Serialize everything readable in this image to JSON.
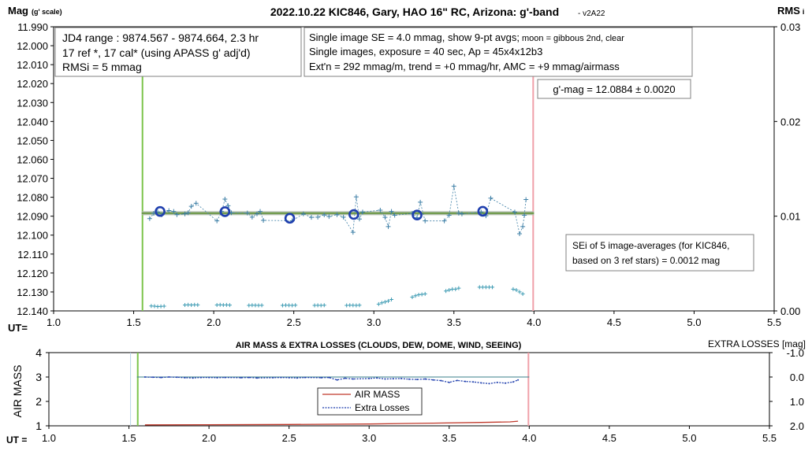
{
  "chart_data": [
    {
      "type": "scatter",
      "title": "2022.10.22 KIC846, Gary, HAO 16\" RC, Arizona: g'-band",
      "title_suffix": "- v2A22",
      "ylabel": "Mag",
      "ylabel_suffix": "(g' scale)",
      "y2label": "RMS",
      "y2label_suffix": "i",
      "xlabel": "UT=",
      "xlim": [
        1.0,
        5.5
      ],
      "ylim": [
        11.99,
        12.14
      ],
      "y_inverted": true,
      "y2lim": [
        0.0,
        0.03
      ],
      "x_ticks": [
        "1.0",
        "1.5",
        "2.0",
        "2.5",
        "3.0",
        "3.5",
        "4.0",
        "4.5",
        "5.0",
        "5.5"
      ],
      "y_ticks": [
        "11.990",
        "12.000",
        "12.010",
        "12.020",
        "12.030",
        "12.040",
        "12.050",
        "12.060",
        "12.070",
        "12.080",
        "12.090",
        "12.100",
        "12.110",
        "12.120",
        "12.130",
        "12.140"
      ],
      "y2_ticks": [
        "0.03",
        "0.02",
        "0.01",
        "0.00"
      ],
      "grid": false,
      "colors": {
        "single": "#3d7fa6",
        "average": "#1f3fae",
        "trend": "#5a8f2a",
        "trend_band": "#a9b8a4",
        "rms": "#3d9bb3",
        "start": "#7cc44c",
        "end": "#f0a0a8"
      },
      "start_line_x": 1.555,
      "end_line_x": 3.995,
      "single_images": [
        [
          1.6,
          12.0913
        ],
        [
          1.625,
          12.0885
        ],
        [
          1.65,
          12.0878
        ],
        [
          1.675,
          12.0893
        ],
        [
          1.72,
          12.087
        ],
        [
          1.75,
          12.0875
        ],
        [
          1.77,
          12.0892
        ],
        [
          1.82,
          12.0888
        ],
        [
          1.84,
          12.0882
        ],
        [
          1.86,
          12.0848
        ],
        [
          1.89,
          12.0832
        ],
        [
          2.02,
          12.0925
        ],
        [
          2.05,
          12.0875
        ],
        [
          2.07,
          12.081
        ],
        [
          2.09,
          12.0845
        ],
        [
          2.11,
          12.0882
        ],
        [
          2.21,
          12.0883
        ],
        [
          2.24,
          12.0905
        ],
        [
          2.27,
          12.0888
        ],
        [
          2.29,
          12.0875
        ],
        [
          2.31,
          12.0922
        ],
        [
          2.49,
          12.0924
        ],
        [
          2.56,
          12.0888
        ],
        [
          2.61,
          12.0906
        ],
        [
          2.65,
          12.0905
        ],
        [
          2.69,
          12.0893
        ],
        [
          2.72,
          12.0902
        ],
        [
          2.77,
          12.0892
        ],
        [
          2.81,
          12.0905
        ],
        [
          2.87,
          12.0985
        ],
        [
          2.89,
          12.0798
        ],
        [
          2.91,
          12.0915
        ],
        [
          2.93,
          12.0878
        ],
        [
          3.04,
          12.0868
        ],
        [
          3.07,
          12.0906
        ],
        [
          3.09,
          12.0955
        ],
        [
          3.11,
          12.0875
        ],
        [
          3.13,
          12.0895
        ],
        [
          3.24,
          12.0885
        ],
        [
          3.27,
          12.0908
        ],
        [
          3.29,
          12.0826
        ],
        [
          3.32,
          12.0925
        ],
        [
          3.44,
          12.0925
        ],
        [
          3.47,
          12.0895
        ],
        [
          3.5,
          12.0742
        ],
        [
          3.53,
          12.0884
        ],
        [
          3.55,
          12.0888
        ],
        [
          3.67,
          12.0878
        ],
        [
          3.7,
          12.0898
        ],
        [
          3.73,
          12.0805
        ],
        [
          3.88,
          12.0878
        ],
        [
          3.91,
          12.0993
        ],
        [
          3.93,
          12.0955
        ],
        [
          3.94,
          12.0895
        ],
        [
          3.95,
          12.0812
        ]
      ],
      "averages": [
        [
          1.665,
          12.0875
        ],
        [
          2.07,
          12.0876
        ],
        [
          2.475,
          12.0911
        ],
        [
          2.875,
          12.0891
        ],
        [
          3.27,
          12.0894
        ],
        [
          3.68,
          12.0874
        ]
      ],
      "trend": {
        "x": [
          1.55,
          4.0
        ],
        "y": [
          12.0884,
          12.0884
        ]
      },
      "rms_points": [
        [
          1.61,
          0.00052
        ],
        [
          1.63,
          0.0005
        ],
        [
          1.65,
          0.00046
        ],
        [
          1.67,
          0.00048
        ],
        [
          1.69,
          0.0005
        ],
        [
          1.82,
          0.00062
        ],
        [
          1.84,
          0.00064
        ],
        [
          1.86,
          0.00062
        ],
        [
          1.88,
          0.00064
        ],
        [
          1.9,
          0.00063
        ],
        [
          2.02,
          0.00062
        ],
        [
          2.04,
          0.00064
        ],
        [
          2.06,
          0.00062
        ],
        [
          2.08,
          0.00063
        ],
        [
          2.1,
          0.00061
        ],
        [
          2.22,
          0.00058
        ],
        [
          2.24,
          0.0006
        ],
        [
          2.26,
          0.00059
        ],
        [
          2.28,
          0.00058
        ],
        [
          2.3,
          0.00059
        ],
        [
          2.43,
          0.00058
        ],
        [
          2.45,
          0.0006
        ],
        [
          2.47,
          0.00059
        ],
        [
          2.49,
          0.00058
        ],
        [
          2.51,
          0.0006
        ],
        [
          2.63,
          0.00058
        ],
        [
          2.65,
          0.00059
        ],
        [
          2.67,
          0.00058
        ],
        [
          2.69,
          0.0006
        ],
        [
          2.83,
          0.00058
        ],
        [
          2.85,
          0.0006
        ],
        [
          2.87,
          0.00059
        ],
        [
          2.89,
          0.00058
        ],
        [
          2.91,
          0.0006
        ],
        [
          3.03,
          0.00072
        ],
        [
          3.05,
          0.00085
        ],
        [
          3.07,
          0.00095
        ],
        [
          3.09,
          0.00105
        ],
        [
          3.11,
          0.0012
        ],
        [
          3.24,
          0.00145
        ],
        [
          3.26,
          0.0016
        ],
        [
          3.28,
          0.0017
        ],
        [
          3.3,
          0.00175
        ],
        [
          3.32,
          0.0018
        ],
        [
          3.45,
          0.0021
        ],
        [
          3.47,
          0.0022
        ],
        [
          3.49,
          0.0023
        ],
        [
          3.51,
          0.0023
        ],
        [
          3.53,
          0.0024
        ],
        [
          3.66,
          0.0025
        ],
        [
          3.68,
          0.0025
        ],
        [
          3.7,
          0.0025
        ],
        [
          3.72,
          0.0025
        ],
        [
          3.74,
          0.0025
        ],
        [
          3.87,
          0.0023
        ],
        [
          3.89,
          0.0022
        ],
        [
          3.91,
          0.002
        ],
        [
          3.93,
          0.0018
        ]
      ],
      "annotations": {
        "jd_box": [
          "JD4 range : 9874.567 - 9874.664,  2.3 hr",
          "17 ref *, 17 cal* (using APASS g' adj'd)",
          "RMSi = 5 mmag"
        ],
        "se_box": [
          "Single image SE = 4.0 mmag, show  9-pt avgs;",
          "moon = gibbous 2nd, clear",
          "Single images, exposure = 40 sec, Ap = 45x4x12b3",
          "Ext'n = 292 mmag/m, trend = +0 mmag/hr, AMC = +9 mmag/airmass"
        ],
        "gmag_box": "g'-mag = 12.0884 ± 0.0020",
        "sei_box": [
          "SEi of 5 image-averages (for KIC846,",
          "based on 3 ref stars) = 0.0012 mag"
        ]
      }
    },
    {
      "type": "line",
      "title": "AIR MASS & EXTRA LOSSES (CLOUDS, DEW, DOME, WIND, SEEING)",
      "ylabel": "AIR MASS",
      "y2label": "EXTRA LOSSES [mag]",
      "xlabel": "UT =",
      "xlim": [
        1.0,
        5.5
      ],
      "ylim": [
        1,
        4
      ],
      "y2lim": [
        -1.0,
        2.0
      ],
      "y2_inverted": true,
      "x_ticks": [
        "1.0",
        "1.5",
        "2.0",
        "2.5",
        "3.0",
        "3.5",
        "4.0",
        "4.5",
        "5.0",
        "5.5"
      ],
      "y_ticks": [
        "4",
        "3",
        "2",
        "1"
      ],
      "y2_ticks": [
        "-1.0",
        "0.0",
        "1.0",
        "2.0"
      ],
      "grid": false,
      "legend_position": "bottom-center",
      "colors": {
        "airmass": "#c0392b",
        "extra": "#1f3fae",
        "ref_line": "#3a7f88",
        "start": "#7cc44c",
        "end": "#f0a0a8",
        "faint": "#b8d4e8"
      },
      "start_line_x": 1.555,
      "end_line_x": 3.995,
      "faint_line_x": 1.51,
      "zero_line": {
        "x": [
          1.55,
          4.0
        ],
        "y2": 0.0
      },
      "series": [
        {
          "name": "AIR MASS",
          "axis": "left",
          "points": [
            [
              1.6,
              1.04
            ],
            [
              2.0,
              1.045
            ],
            [
              2.5,
              1.055
            ],
            [
              3.0,
              1.075
            ],
            [
              3.4,
              1.11
            ],
            [
              3.7,
              1.14
            ],
            [
              3.88,
              1.16
            ],
            [
              3.93,
              1.19
            ]
          ]
        },
        {
          "name": "Extra Losses",
          "axis": "right",
          "points": [
            [
              1.6,
              0.0
            ],
            [
              1.65,
              0.01
            ],
            [
              1.7,
              0.02
            ],
            [
              1.75,
              0.0
            ],
            [
              1.8,
              0.01
            ],
            [
              1.85,
              0.03
            ],
            [
              1.9,
              0.04
            ],
            [
              1.95,
              0.02
            ],
            [
              2.0,
              0.02
            ],
            [
              2.05,
              0.03
            ],
            [
              2.1,
              0.02
            ],
            [
              2.2,
              0.03
            ],
            [
              2.25,
              0.02
            ],
            [
              2.3,
              0.04
            ],
            [
              2.4,
              0.03
            ],
            [
              2.45,
              0.02
            ],
            [
              2.5,
              0.03
            ],
            [
              2.55,
              0.04
            ],
            [
              2.6,
              0.02
            ],
            [
              2.7,
              0.03
            ],
            [
              2.75,
              0.02
            ],
            [
              2.8,
              0.12
            ],
            [
              2.85,
              0.05
            ],
            [
              2.9,
              0.08
            ],
            [
              3.0,
              0.06
            ],
            [
              3.05,
              0.04
            ],
            [
              3.1,
              0.08
            ],
            [
              3.15,
              0.07
            ],
            [
              3.2,
              0.06
            ],
            [
              3.25,
              0.09
            ],
            [
              3.3,
              0.1
            ],
            [
              3.35,
              0.08
            ],
            [
              3.4,
              0.12
            ],
            [
              3.45,
              0.15
            ],
            [
              3.5,
              0.22
            ],
            [
              3.55,
              0.14
            ],
            [
              3.6,
              0.18
            ],
            [
              3.65,
              0.2
            ],
            [
              3.7,
              0.24
            ],
            [
              3.75,
              0.27
            ],
            [
              3.8,
              0.22
            ],
            [
              3.85,
              0.25
            ],
            [
              3.9,
              0.2
            ],
            [
              3.93,
              0.12
            ]
          ]
        }
      ]
    }
  ]
}
